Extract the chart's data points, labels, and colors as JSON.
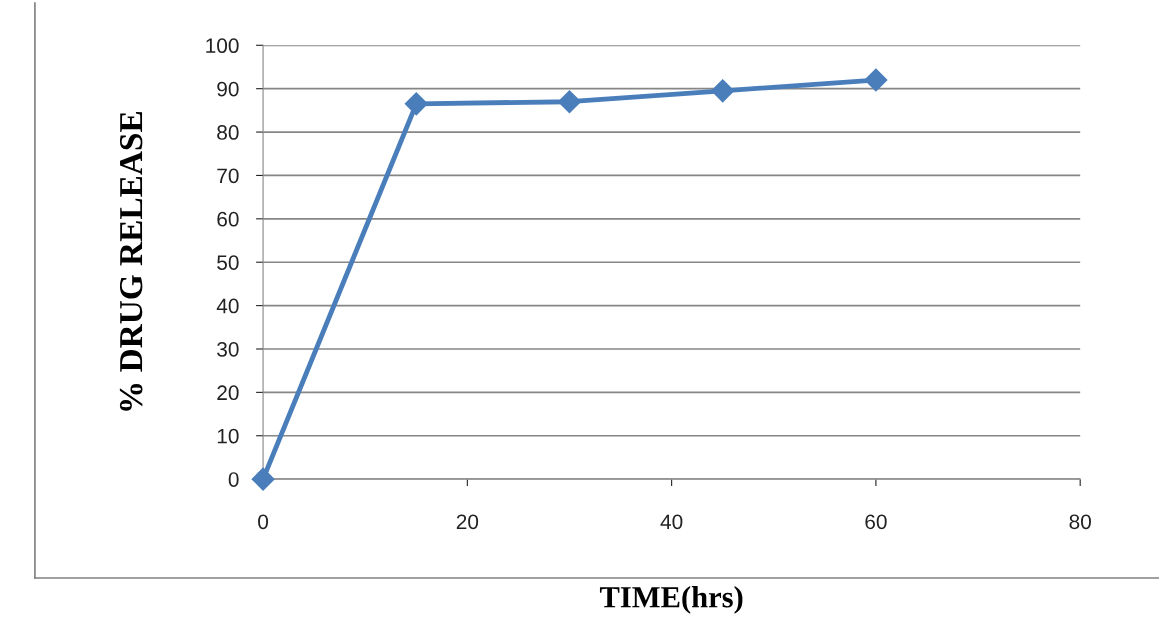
{
  "chart_data": {
    "type": "line",
    "xlabel": "TIME(hrs)",
    "ylabel": "% DRUG RELEASE",
    "x": [
      0,
      15,
      30,
      45,
      60
    ],
    "series": [
      {
        "color": "#4a7ebb",
        "values": [
          0,
          86.5,
          87,
          89.5,
          92
        ]
      }
    ],
    "xlim": [
      0,
      80
    ],
    "xticks": [
      0,
      20,
      40,
      60,
      80
    ],
    "ylim": [
      0,
      100
    ],
    "yticks": [
      0,
      10,
      20,
      30,
      40,
      50,
      60,
      70,
      80,
      90,
      100
    ],
    "grid": "y",
    "marker": "diamond",
    "line_style": "solid"
  }
}
